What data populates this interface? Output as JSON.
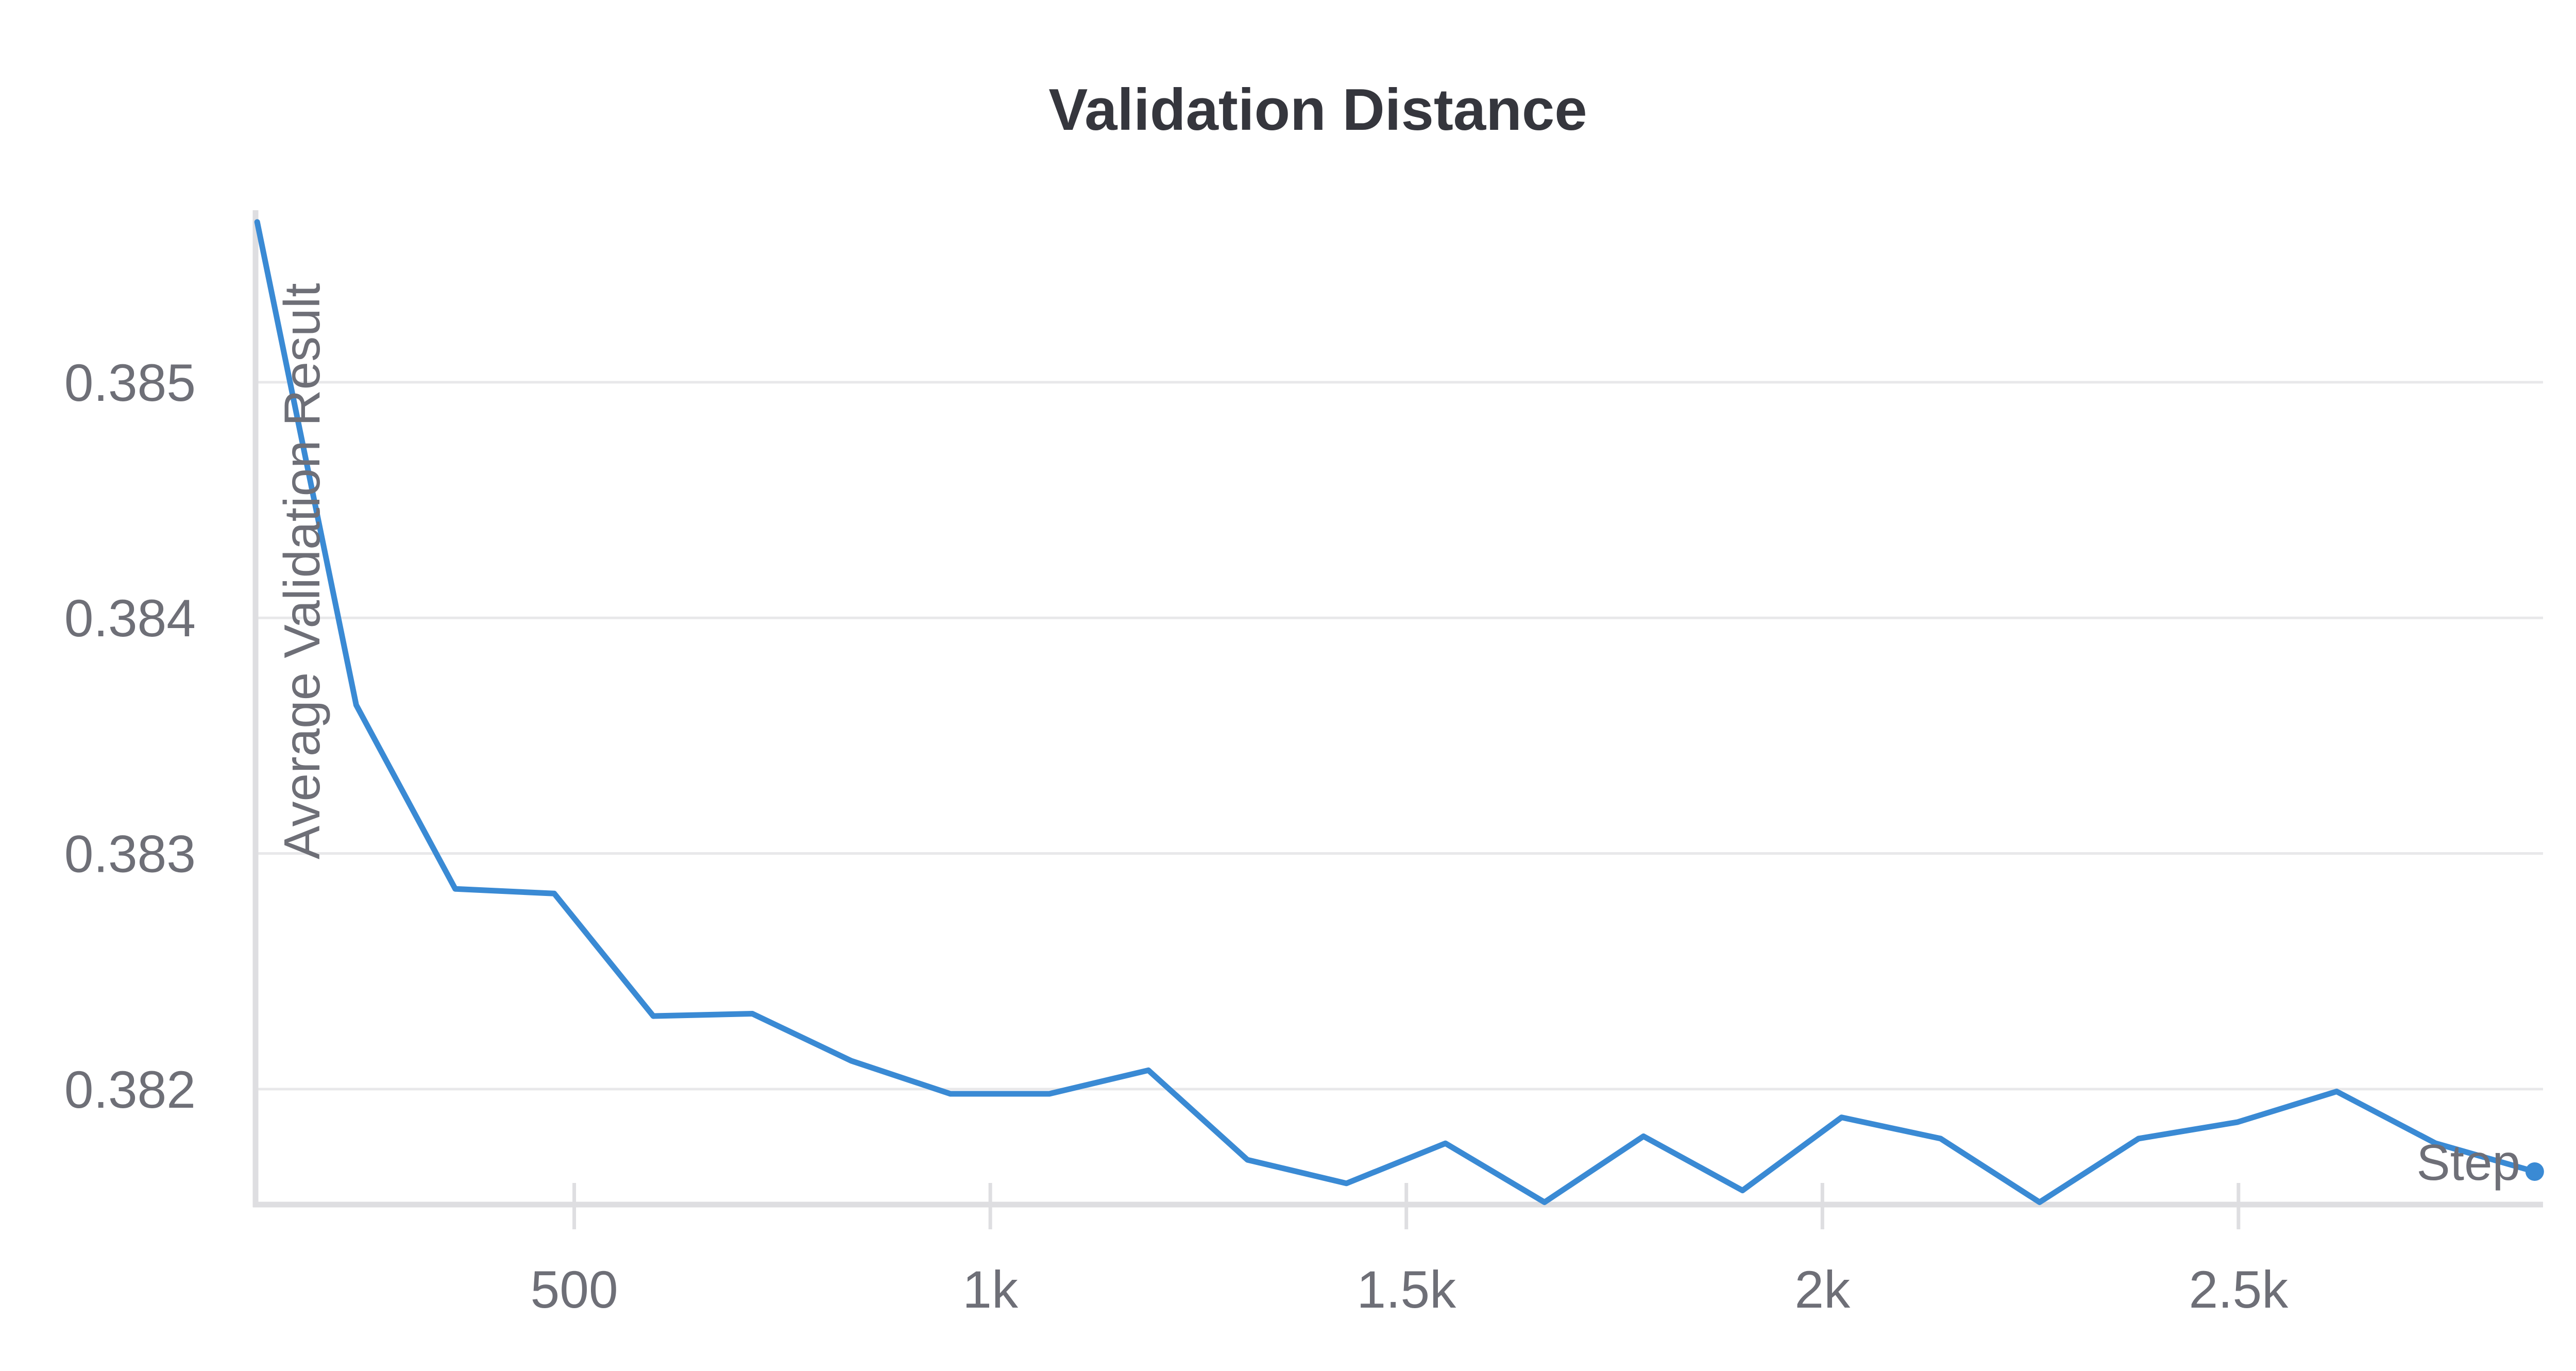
{
  "chart_data": {
    "type": "line",
    "title": "Validation Distance",
    "xlabel": "Step",
    "ylabel": "Average Validation Result",
    "x_ticks": [
      {
        "value": 500,
        "label": "500"
      },
      {
        "value": 1000,
        "label": "1k"
      },
      {
        "value": 1500,
        "label": "1.5k"
      },
      {
        "value": 2000,
        "label": "2k"
      },
      {
        "value": 2500,
        "label": "2.5k"
      }
    ],
    "y_ticks": [
      {
        "value": 0.382,
        "label": "0.382"
      },
      {
        "value": 0.383,
        "label": "0.383"
      },
      {
        "value": 0.384,
        "label": "0.384"
      },
      {
        "value": 0.385,
        "label": "0.385"
      }
    ],
    "xlim": [
      117,
      2866
    ],
    "ylim": [
      0.38151,
      0.38573
    ],
    "grid": true,
    "colors": {
      "series": "#3a8ad4"
    },
    "series": [
      {
        "x": [
          119,
          238,
          357,
          476,
          595,
          714,
          833,
          952,
          1071,
          1190,
          1309,
          1428,
          1547,
          1666,
          1785,
          1904,
          2023,
          2142,
          2261,
          2380,
          2499,
          2618,
          2737,
          2856
        ],
        "y": [
          0.38568,
          0.38363,
          0.38285,
          0.38283,
          0.38231,
          0.38232,
          0.38212,
          0.38198,
          0.38198,
          0.38208,
          0.3817,
          0.3816,
          0.38177,
          0.38152,
          0.3818,
          0.38157,
          0.38188,
          0.38179,
          0.38152,
          0.38179,
          0.38186,
          0.38199,
          0.38177,
          0.38165
        ]
      }
    ]
  }
}
